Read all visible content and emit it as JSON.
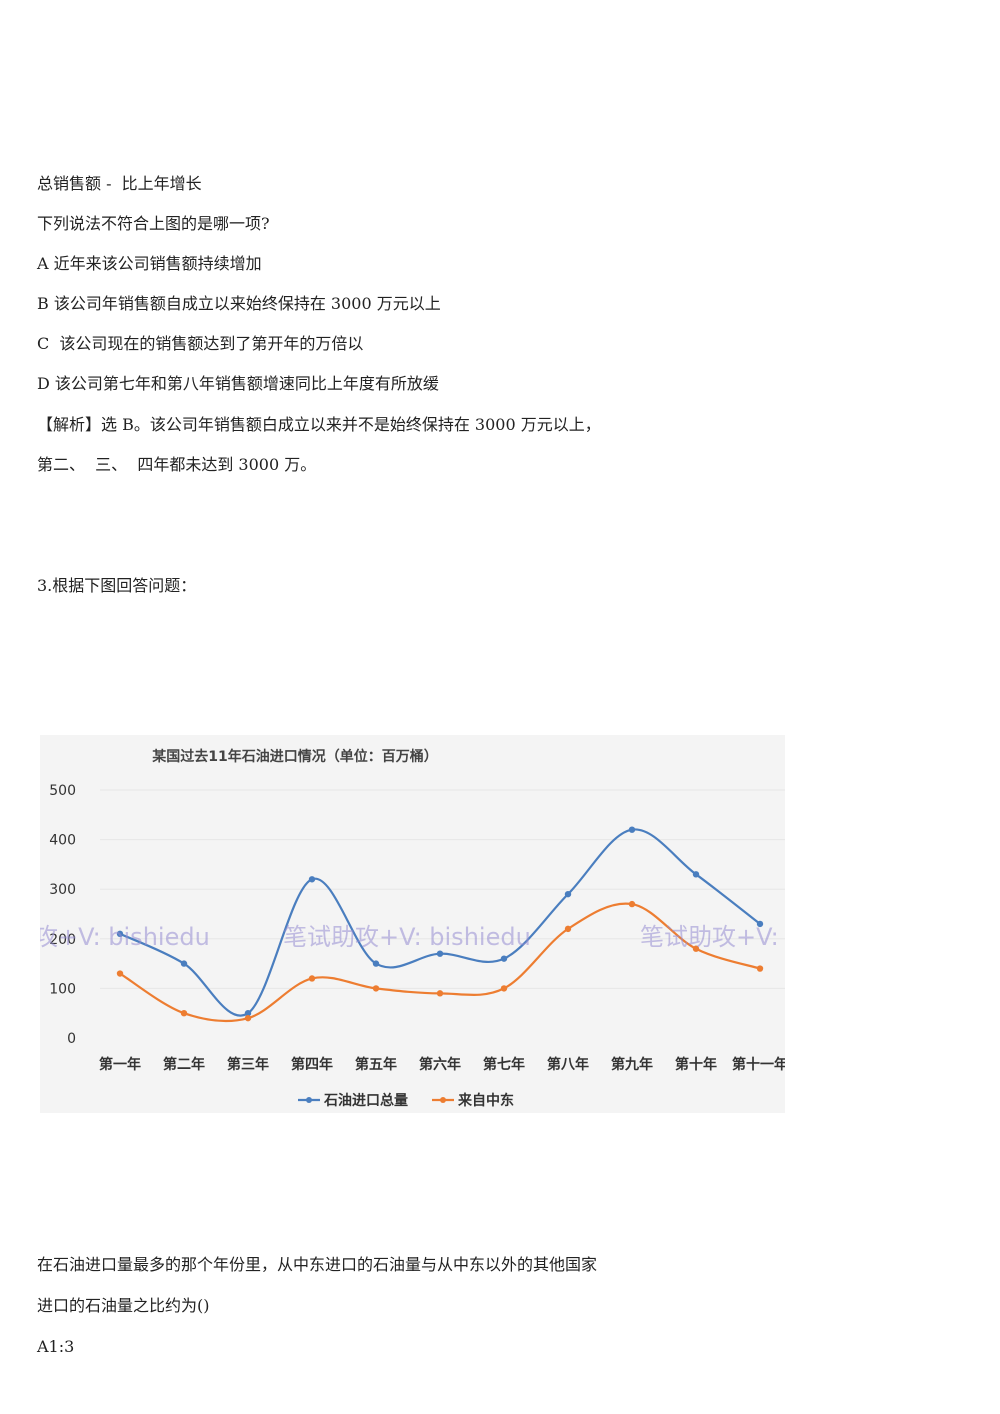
{
  "text": {
    "l1": "总销售额 -  比上年增长",
    "l2": "下列说法不符合上图的是哪一项?",
    "l3": "A 近年来该公司销售额持续增加",
    "l4": "B 该公司年销售额自成立以来始终保持在 3000 万元以上",
    "l5": "C  该公司现在的销售额达到了第开年的万倍以",
    "l6": "D 该公司第七年和第八年销售额增速同比上年度有所放缓",
    "l7": "【解析】选 B。该公司年销售额白成立以来并不是始终保持在 3000 万元以上，",
    "l8": "第二、  三、  四年都未达到 3000 万。",
    "l9": "3.根据下图回答问题：",
    "l10": "在石油进口量最多的那个年份里，从中东进口的石油量与从中东以外的其他国家",
    "l11": "进口的石油量之比约为()",
    "l12": "A1:3"
  },
  "watermark": "笔试助攻+V: bishiedu",
  "chart_data": {
    "type": "line",
    "title": "某国过去11年石油进口情况（单位：百万桶）",
    "categories": [
      "第一年",
      "第二年",
      "第三年",
      "第四年",
      "第五年",
      "第六年",
      "第七年",
      "第八年",
      "第九年",
      "第十年",
      "第十一年"
    ],
    "series": [
      {
        "name": "石油进口总量",
        "color": "#4a7ebf",
        "values": [
          210,
          150,
          50,
          320,
          150,
          170,
          160,
          290,
          420,
          330,
          230
        ]
      },
      {
        "name": "来自中东",
        "color": "#ed7d31",
        "values": [
          130,
          50,
          40,
          120,
          100,
          90,
          100,
          220,
          270,
          180,
          140
        ]
      }
    ],
    "yticks": [
      0,
      100,
      200,
      300,
      400,
      500
    ],
    "ylim": [
      0,
      500
    ],
    "grid": true,
    "legend": "bottom",
    "smooth": true
  }
}
